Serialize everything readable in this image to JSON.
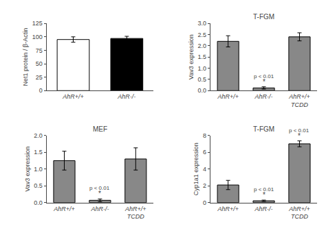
{
  "chart_data": [
    {
      "type": "bar",
      "ylabel": "Net1 protein / β-Actin",
      "categories": [
        "AhR+/+",
        "AhR-/-"
      ],
      "values": [
        95,
        97
      ],
      "errors": [
        5,
        4
      ],
      "colors": [
        "white",
        "black"
      ],
      "ylim": [
        0,
        125
      ],
      "yticks": [
        0,
        25,
        50,
        75,
        100,
        125
      ],
      "grid": false
    },
    {
      "type": "bar",
      "title": "T-FGM",
      "ylabel": "Vav3 expression",
      "categories": [
        "AhR+/+",
        "AhR-/-",
        "AhR+/+\nTCDD"
      ],
      "values": [
        2.2,
        0.12,
        2.4
      ],
      "errors": [
        0.25,
        0.05,
        0.18
      ],
      "color": "#888888",
      "ylim": [
        0,
        3.0
      ],
      "yticks": [
        {
          "value": 0,
          "label": "0.0"
        },
        0.5,
        {
          "value": 1,
          "label": "1.0"
        },
        1.5,
        {
          "value": 2,
          "label": "2.0"
        },
        2.5,
        {
          "value": 3,
          "label": "3.0"
        }
      ],
      "grid": false,
      "annotations": [
        {
          "category": "AhR-/-",
          "text": "*"
        },
        {
          "category": "AhR-/-",
          "text": "p < 0.01"
        }
      ]
    },
    {
      "type": "bar",
      "title": "MEF",
      "ylabel": "Vav3 expression",
      "categories": [
        "AhR+/+",
        "AhR-/-",
        "AhR+/+\nTCDD"
      ],
      "values": [
        1.25,
        0.07,
        1.3
      ],
      "errors": [
        0.28,
        0.04,
        0.33
      ],
      "color": "#888888",
      "ylim": [
        0,
        2.0
      ],
      "yticks": [
        {
          "value": 0,
          "label": "0.0"
        },
        0.5,
        {
          "value": 1,
          "label": "1.0"
        },
        1.5,
        {
          "value": 2,
          "label": "2.0"
        }
      ],
      "grid": false,
      "annotations": [
        {
          "category": "AhR-/-",
          "text": "*"
        },
        {
          "category": "AhR-/-",
          "text": "p < 0.01"
        }
      ]
    },
    {
      "type": "bar",
      "title": "T-FGM",
      "ylabel": "Cyp1a1 expression",
      "categories": [
        "AhR+/+",
        "AhR-/-",
        "AhR+/+\nTCDD"
      ],
      "values": [
        2.1,
        0.22,
        7.0
      ],
      "errors": [
        0.55,
        0.08,
        0.35
      ],
      "color": "#888888",
      "ylim": [
        0,
        8.0
      ],
      "yticks": [
        0,
        2,
        4,
        6,
        8
      ],
      "grid": false,
      "annotations": [
        {
          "category": "AhR-/-",
          "text": "*"
        },
        {
          "category": "AhR-/-",
          "text": "p < 0.01"
        },
        {
          "category": "AhR+/+\nTCDD",
          "text": "*"
        },
        {
          "category": "AhR+/+\nTCDD",
          "text": "p < 0.01"
        }
      ]
    }
  ]
}
